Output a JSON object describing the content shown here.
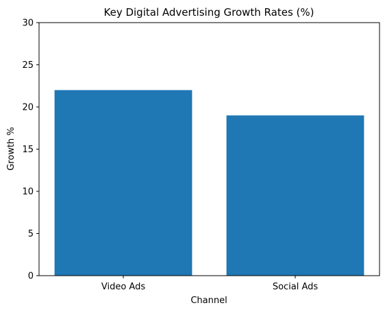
{
  "chart_data": {
    "type": "bar",
    "title": "Key Digital Advertising Growth Rates (%)",
    "xlabel": "Channel",
    "ylabel": "Growth %",
    "categories": [
      "Video Ads",
      "Social Ads"
    ],
    "values": [
      22,
      19
    ],
    "ylim": [
      0,
      30
    ],
    "yticks": [
      0,
      5,
      10,
      15,
      20,
      25,
      30
    ],
    "bar_color": "#1f77b4",
    "grid": false,
    "legend": "none"
  }
}
